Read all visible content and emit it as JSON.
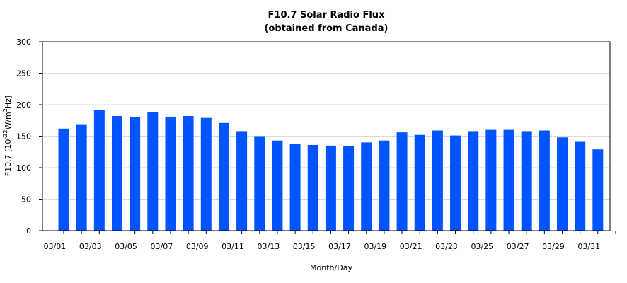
{
  "chart_data": {
    "type": "bar",
    "title": "F10.7 Solar Radio Flux",
    "subtitle": "(obtained from Canada)",
    "xlabel": "Month/Day",
    "ylabel_main": "F10.7 [10",
    "ylabel_exp1": "-22",
    "ylabel_mid": "W/m",
    "ylabel_exp2": "2",
    "ylabel_end": "Hz]",
    "ylim": [
      0,
      300
    ],
    "yticks": [
      0,
      50,
      100,
      150,
      200,
      250,
      300
    ],
    "grid": true,
    "bar_color": "#0055ff",
    "xlim": [
      "02/29",
      "04/01"
    ],
    "x_tick_labels": [
      "03/01",
      "03/03",
      "03/05",
      "03/07",
      "03/09",
      "03/11",
      "03/13",
      "03/15",
      "03/17",
      "03/19",
      "03/21",
      "03/23",
      "03/25",
      "03/27",
      "03/29",
      "03/31"
    ],
    "categories": [
      "03/01",
      "03/02",
      "03/03",
      "03/04",
      "03/05",
      "03/06",
      "03/07",
      "03/08",
      "03/09",
      "03/10",
      "03/11",
      "03/12",
      "03/13",
      "03/14",
      "03/15",
      "03/16",
      "03/17",
      "03/18",
      "03/19",
      "03/20",
      "03/21",
      "03/22",
      "03/23",
      "03/24",
      "03/25",
      "03/26",
      "03/27",
      "03/28",
      "03/29",
      "03/30",
      "03/31"
    ],
    "values": [
      162,
      169,
      191,
      182,
      180,
      188,
      181,
      182,
      179,
      171,
      158,
      150,
      143,
      138,
      136,
      135,
      134,
      140,
      143,
      156,
      152,
      159,
      151,
      158,
      160,
      160,
      158,
      159,
      148,
      141,
      129
    ]
  }
}
